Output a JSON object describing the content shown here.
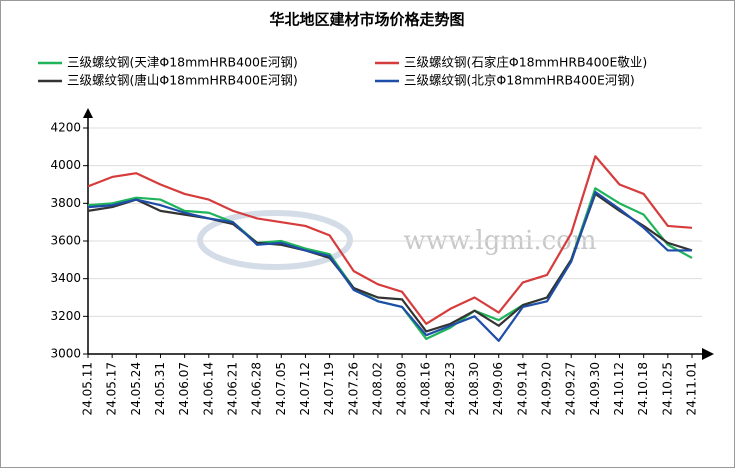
{
  "chart_data": {
    "type": "line",
    "title": "华北地区建材市场价格走势图",
    "watermark": "www.lgmi.com",
    "categories": [
      "24.05.11",
      "24.05.17",
      "24.05.24",
      "24.05.31",
      "24.06.07",
      "24.06.14",
      "24.06.21",
      "24.06.28",
      "24.07.05",
      "24.07.12",
      "24.07.19",
      "24.07.26",
      "24.08.02",
      "24.08.09",
      "24.08.16",
      "24.08.23",
      "24.08.30",
      "24.09.06",
      "24.09.14",
      "24.09.20",
      "24.09.27",
      "24.09.30",
      "24.10.12",
      "24.10.18",
      "24.10.25",
      "24.11.01"
    ],
    "series": [
      {
        "name": "三级螺纹钢(天津Φ18mmHRB400E河钢)",
        "color": "#1fb45a",
        "values": [
          3790,
          3800,
          3830,
          3820,
          3760,
          3750,
          3700,
          3590,
          3600,
          3560,
          3530,
          3350,
          3280,
          3250,
          3080,
          3140,
          3230,
          3180,
          3260,
          3300,
          3500,
          3880,
          3800,
          3740,
          3580,
          3510
        ]
      },
      {
        "name": "三级螺纹钢(石家庄Φ18mmHRB400E敬业)",
        "color": "#d63c3c",
        "values": [
          3890,
          3940,
          3960,
          3900,
          3850,
          3820,
          3760,
          3720,
          3700,
          3680,
          3630,
          3440,
          3370,
          3330,
          3160,
          3240,
          3300,
          3220,
          3380,
          3420,
          3640,
          4050,
          3900,
          3850,
          3680,
          3670
        ]
      },
      {
        "name": "三级螺纹钢(唐山Φ18mmHRB400E河钢)",
        "color": "#333333",
        "values": [
          3760,
          3780,
          3820,
          3760,
          3740,
          3720,
          3690,
          3590,
          3580,
          3550,
          3510,
          3350,
          3300,
          3290,
          3120,
          3160,
          3230,
          3150,
          3260,
          3300,
          3500,
          3850,
          3760,
          3680,
          3590,
          3550
        ]
      },
      {
        "name": "三级螺纹钢(北京Φ18mmHRB400E河钢)",
        "color": "#1f4ea8",
        "values": [
          3780,
          3790,
          3820,
          3790,
          3750,
          3720,
          3700,
          3580,
          3590,
          3550,
          3520,
          3340,
          3280,
          3250,
          3100,
          3150,
          3200,
          3070,
          3250,
          3280,
          3490,
          3860,
          3770,
          3670,
          3550,
          3550
        ]
      }
    ],
    "ylim": [
      3000,
      4200
    ],
    "yticks": [
      3000,
      3200,
      3400,
      3600,
      3800,
      4000,
      4200
    ],
    "grid": true
  }
}
